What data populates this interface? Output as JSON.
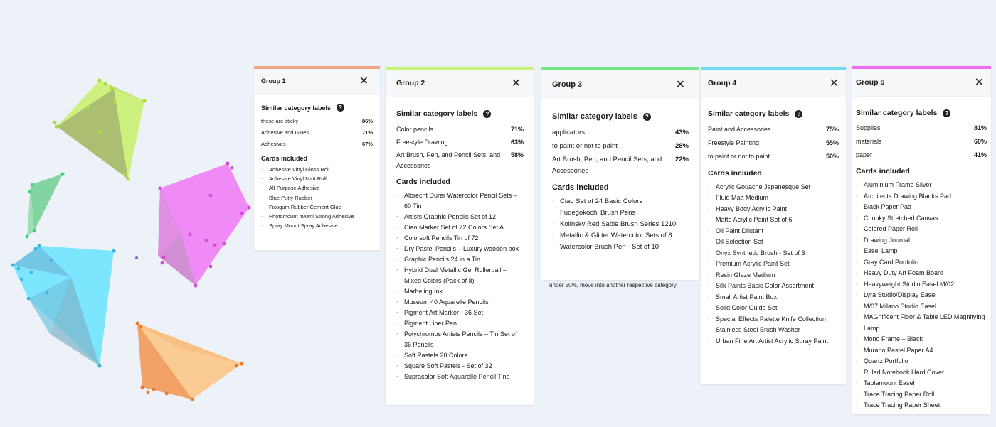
{
  "common": {
    "similar_labels_title": "Similar category labels",
    "help_glyph": "?",
    "cards_title": "Cards included",
    "close_glyph": "✕"
  },
  "groups": [
    {
      "id": "p1",
      "title": "Group 1",
      "accent": "#f0a58a",
      "labels": [
        {
          "name": "these are sticky",
          "pct": "86%"
        },
        {
          "name": "Adhesive and Glues",
          "pct": "71%"
        },
        {
          "name": "Adhesives",
          "pct": "67%"
        }
      ],
      "cards": [
        "Adhesive Vinyl Gloss Roll",
        "Adhesive Vinyl Matt Roll",
        "All-Purpose Adhesive",
        "Blue Putty Rubber",
        "Fixogum Rubber Cement Glue",
        "Photomount 400ml Strong Adhesive",
        "Spray Mount Spray Adhesive"
      ]
    },
    {
      "id": "p2",
      "title": "Group 2",
      "accent": "#c8f47a",
      "labels": [
        {
          "name": "Color pencils",
          "pct": "71%"
        },
        {
          "name": "Freestyle Drawing",
          "pct": "63%"
        },
        {
          "name": "Art Brush, Pen, and Pencil Sets, and Accessories",
          "pct": "58%"
        }
      ],
      "cards": [
        "Albrecht Durer Watercolor Pencil Sets – 60 Tin",
        "Artists Graphic Pencils Set of 12",
        "Ciao Marker Set of 72 Colors Set A",
        "Colorsoft Pencils Tin of 72",
        "Dry Pastel Pencils – Luxury wooden box",
        "Graphic Pencils 24 in a Tin",
        "Hybrid Dual Metallic Gel Rollerball – Mixed Colors (Pack of 8)",
        "Marbeling Ink",
        "Museum 40 Aquarelle Pencils",
        "Pigment Art Marker - 36 Set",
        "Pigment Liner Pen",
        "Polychromos Artists Pencils – Tin Set of 36 Pencils",
        "Soft Pastels 20 Colors",
        "Square Soft Pastels - Set of 32",
        "Supracolor Soft Aquarelle Pencil Tins"
      ]
    },
    {
      "id": "p3",
      "title": "Group 3",
      "accent": "#74e68a",
      "labels": [
        {
          "name": "applicators",
          "pct": "43%"
        },
        {
          "name": "to paint or not to paint",
          "pct": "28%"
        },
        {
          "name": "Art Brush, Pen, and Pencil Sets, and Accessories",
          "pct": "22%"
        }
      ],
      "cards": [
        "Ciao Set of 24 Basic Colors",
        "Fudegokochi Brush Pens",
        "Kolinsky Red Sable Brush Series 1210",
        "Metallic & Glitter Watercolor Sets of 8",
        "Watercolor Brush Pen - Set of 10"
      ],
      "note": "under 50%, move into another respective category"
    },
    {
      "id": "p4",
      "title": "Group 4",
      "accent": "#6edcf2",
      "labels": [
        {
          "name": "Paint and Accessories",
          "pct": "75%"
        },
        {
          "name": "Freestyle Painting",
          "pct": "55%"
        },
        {
          "name": "to paint or not to paint",
          "pct": "50%"
        }
      ],
      "cards": [
        "Acrylic Gouache Japanesque Set",
        "Fluid Matt Medium",
        "Heavy Body Acrylic Paint",
        "Matte Acrylic Paint Set of 6",
        "Oil Paint Dilutant",
        "Oil Selection Set",
        "Onyx Synthetic Brush - Set of 3",
        "Premium Acrylic Paint Set",
        "Resin Glaze Medium",
        "Silk Paints Basic Color Assortment",
        "Small Artist Paint Box",
        "Solid Color Guide Set",
        "Special Effects Palette Knife Collection",
        "Stainless Steel Brush Washer",
        "Urban Fine Art Artist Acrylic Spray Paint"
      ]
    },
    {
      "id": "p6",
      "title": "Group 6",
      "accent": "#ef6bef",
      "labels": [
        {
          "name": "Supplies",
          "pct": "81%"
        },
        {
          "name": "materials",
          "pct": "60%"
        },
        {
          "name": "paper",
          "pct": "41%"
        }
      ],
      "cards": [
        "Aluminium Frame Silver",
        "Architects Drawing Blanks Pad",
        "Black Paper Pad",
        "Chunky Stretched Canvas",
        "Colored Paper Roll",
        "Drawing Journal",
        "Easel Lamp",
        "Gray Card Portfolio",
        "Heavy Duty Art Foam Board",
        "Heavyweight Studio Easel M/02",
        "Lyra Studio/Display Easel",
        "M/07 Milano Studio Easel",
        "MAGnificent Floor & Table LED Magnifying Lamp",
        "Mono Frame – Black",
        "Murano Pastel Paper A4",
        "Quartz Portfolio",
        "Ruled Notebook Hard Cover",
        "Tablemount Easel",
        "Trace Tracing Paper Roll",
        "Trace Tracing Paper Sheet"
      ]
    }
  ],
  "viz": {
    "clusters": [
      {
        "name": "cluster-yellow-green",
        "fill": "#c8f06a",
        "dot": "#a6e03a"
      },
      {
        "name": "cluster-green",
        "fill": "#7ed6a0",
        "dot": "#3fcf74"
      },
      {
        "name": "cluster-magenta",
        "fill": "#f07ef5",
        "dot": "#d94ad9"
      },
      {
        "name": "cluster-cyan",
        "fill": "#6fe3ff",
        "dot": "#3ab7e0"
      },
      {
        "name": "cluster-orange",
        "fill": "#fbb870",
        "dot": "#ee7a2a"
      }
    ]
  }
}
